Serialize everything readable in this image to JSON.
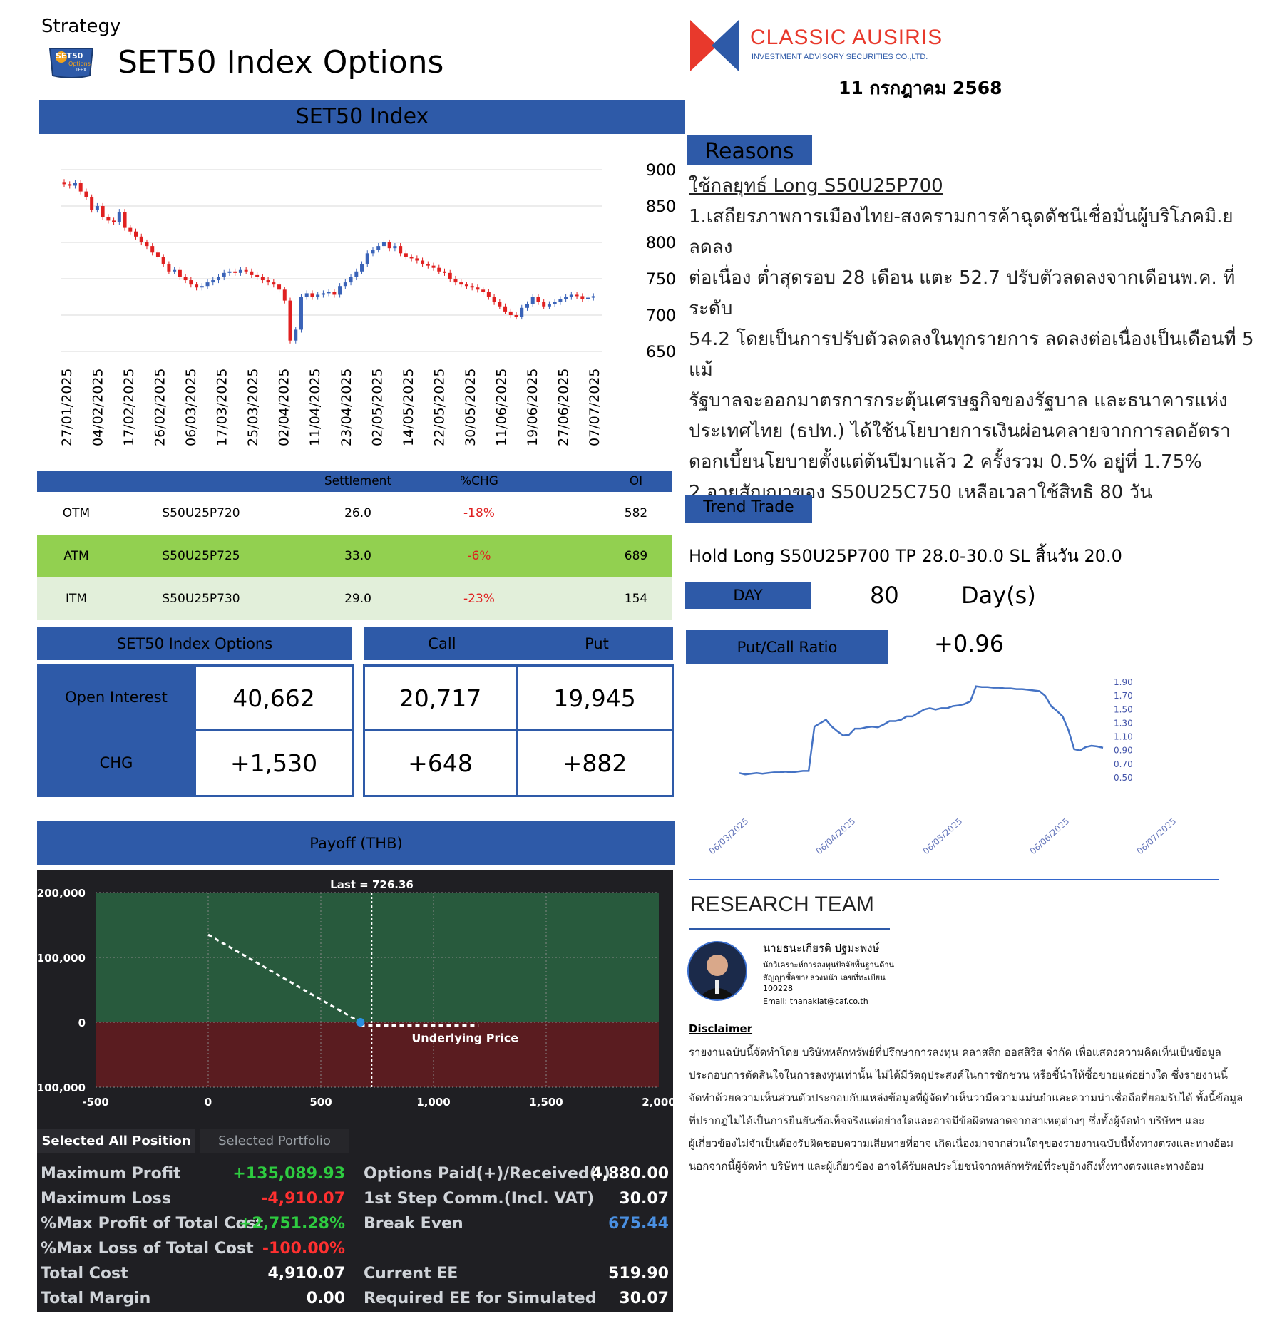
{
  "header": {
    "strategy_label": "Strategy",
    "logo_text_1": "SET50",
    "logo_text_2": "Options",
    "logo_text_3": "TFEX",
    "title": "SET50 Index Options",
    "company_name": "CLASSIC AUSIRIS",
    "company_sub": "INVESTMENT ADVISORY SECURITIES CO.,LTD.",
    "date": "11 กรกฎาคม 2568",
    "colors": {
      "brand_red": "#e8392c",
      "brand_blue": "#2e5aa8"
    }
  },
  "set50_panel": {
    "title": "SET50 Index",
    "chart_data": {
      "type": "candlestick",
      "ylim": [
        650,
        900
      ],
      "yticks": [
        "900",
        "850",
        "800",
        "750",
        "700",
        "650"
      ],
      "x_ticks": [
        "27/01/2025",
        "04/02/2025",
        "17/02/2025",
        "26/02/2025",
        "06/03/2025",
        "17/03/2025",
        "25/03/2025",
        "02/04/2025",
        "11/04/2025",
        "23/04/2025",
        "02/05/2025",
        "14/05/2025",
        "22/05/2025",
        "30/05/2025",
        "11/06/2025",
        "19/06/2025",
        "27/06/2025",
        "07/07/2025"
      ],
      "close": [
        880,
        878,
        882,
        870,
        862,
        845,
        850,
        835,
        830,
        828,
        842,
        820,
        815,
        808,
        800,
        795,
        786,
        780,
        770,
        760,
        762,
        752,
        748,
        742,
        738,
        740,
        745,
        748,
        752,
        758,
        760,
        758,
        762,
        760,
        755,
        752,
        748,
        745,
        742,
        735,
        720,
        665,
        680,
        725,
        730,
        725,
        728,
        730,
        732,
        728,
        740,
        745,
        752,
        760,
        770,
        785,
        790,
        795,
        800,
        792,
        795,
        785,
        780,
        778,
        775,
        770,
        768,
        765,
        760,
        758,
        750,
        745,
        742,
        740,
        738,
        735,
        732,
        725,
        718,
        712,
        705,
        700,
        698,
        710,
        715,
        725,
        718,
        712,
        715,
        718,
        722,
        725,
        728,
        726,
        722,
        724,
        726
      ]
    }
  },
  "reasons": {
    "title": "Reasons",
    "strategy": "ใช้กลยุทธ์ Long S50U25P700",
    "lines": [
      "1.เสถียรภาพการเมืองไทย-สงครามการค้าฉุดดัชนีเชื่อมั่นผู้บริโภคมิ.ย ลดลง",
      "ต่อเนื่อง ต่ำสุดรอบ 28 เดือน แตะ 52.7 ปรับตัวลดลงจากเดือนพ.ค. ที่ระดับ",
      "54.2 โดยเป็นการปรับตัวลดลงในทุกรายการ ลดลงต่อเนื่องเป็นเดือนที่ 5 แม้",
      "รัฐบาลจะออกมาตรการกระตุ้นเศรษฐกิจของรัฐบาล และธนาคารแห่ง",
      "ประเทศไทย (ธปท.) ได้ใช้นโยบายการเงินผ่อนคลายจากการลดอัตรา",
      "ดอกเบี้ยนโยบายตั้งแต่ต้นปีมาแล้ว 2 ครั้งรวม 0.5% อยู่ที่ 1.75%",
      "2.อายุสัญญาของ S50U25C750 เหลือเวลาใช้สิทธิ 80 วัน"
    ]
  },
  "options_table": {
    "headers": [
      "",
      "",
      "Settlement",
      "%CHG",
      "OI"
    ],
    "rows": [
      {
        "moneyness": "OTM",
        "series": "S50U25P720",
        "settlement": "26.0",
        "chg": "-18%",
        "oi": "582"
      },
      {
        "moneyness": "ATM",
        "series": "S50U25P725",
        "settlement": "33.0",
        "chg": "-6%",
        "oi": "689"
      },
      {
        "moneyness": "ITM",
        "series": "S50U25P730",
        "settlement": "29.0",
        "chg": "-23%",
        "oi": "154"
      }
    ]
  },
  "trend": {
    "title": "Trend Trade",
    "text": "Hold Long S50U25P700  TP 28.0-30.0 SL สิ้นวัน 20.0",
    "day_label": "DAY",
    "day_value": "80",
    "day_unit": "Day(s)",
    "pcr_label": "Put/Call Ratio",
    "pcr_value": "+0.96"
  },
  "oi_summary": {
    "title": "SET50 Index Options",
    "call_label": "Call",
    "put_label": "Put",
    "oi_label": "Open Interest",
    "chg_label": "CHG",
    "oi_total": "40,662",
    "oi_call": "20,717",
    "oi_put": "19,945",
    "chg_total": "+1,530",
    "chg_call": "+648",
    "chg_put": "+882"
  },
  "pcr_chart": {
    "chart_data": {
      "type": "line",
      "ylim": [
        0.5,
        1.9
      ],
      "yticks": [
        "1.90",
        "1.70",
        "1.50",
        "1.30",
        "1.10",
        "0.90",
        "0.70",
        "0.50"
      ],
      "x_ticks": [
        "06/03/2025",
        "06/04/2025",
        "06/05/2025",
        "06/06/2025",
        "06/07/2025"
      ],
      "values": [
        0.57,
        0.55,
        0.56,
        0.57,
        0.56,
        0.57,
        0.58,
        0.58,
        0.59,
        0.58,
        0.59,
        0.6,
        0.6,
        1.25,
        1.3,
        1.35,
        1.25,
        1.18,
        1.12,
        1.13,
        1.22,
        1.22,
        1.24,
        1.25,
        1.24,
        1.28,
        1.33,
        1.33,
        1.35,
        1.4,
        1.4,
        1.45,
        1.5,
        1.52,
        1.5,
        1.52,
        1.52,
        1.55,
        1.56,
        1.58,
        1.62,
        1.84,
        1.83,
        1.83,
        1.82,
        1.82,
        1.81,
        1.81,
        1.8,
        1.8,
        1.79,
        1.78,
        1.77,
        1.7,
        1.55,
        1.48,
        1.4,
        1.2,
        0.92,
        0.9,
        0.95,
        0.97,
        0.96,
        0.94
      ],
      "line_color": "#4472c4"
    }
  },
  "research": {
    "title": "RESEARCH TEAM",
    "name": "นายธนะเกียรติ ปฐมะพงษ์",
    "role1": "นักวิเคราะห์การลงทุนปัจจัยพื้นฐานด้าน",
    "role2": "สัญญาซื้อขายล่วงหน้า เลขที่ทะเบียน",
    "reg_no": "100228",
    "email": "Email: thanakiat@caf.co.th",
    "disclaimer_title": "Disclaimer",
    "disclaimer_lines": [
      "รายงานฉบับนี้จัดทำโดย บริษัทหลักทรัพย์ที่ปรึกษาการลงทุน คลาสสิก ออสสิริส จำกัด เพื่อแสดงความคิดเห็นเป็นข้อมูล",
      "ประกอบการตัดสินใจในการลงทุนเท่านั้น ไม่ได้มีวัตถุประสงค์ในการชักชวน หรือชี้นำให้ซื้อขายแต่อย่างใด ซึ่งรายงานนี้",
      "จัดทำด้วยความเห็นส่วนตัวประกอบกับแหล่งข้อมูลที่ผู้จัดทำเห็นว่ามีความแม่นยำและความน่าเชื่อถือที่ยอมรับได้ ทั้งนี้ข้อมูล",
      "ที่ปรากฎไม่ได้เป็นการยืนยันข้อเท็จจริงแต่อย่างใดและอาจมีข้อผิดพลาดจากสาเหตุต่างๆ ซึ่งทั้งผู้จัดทำ บริษัทฯ และ",
      "ผู้เกี่ยวข้องไม่จำเป็นต้องรับผิดชอบความเสียหายที่อาจ เกิดเนื่องมาจากส่วนใดๆของรายงานฉบับนี้ทั้งทางตรงและทางอ้อม",
      "นอกจากนี้ผู้จัดทำ บริษัทฯ และผู้เกี่ยวข้อง อาจได้รับผลประโยชน์จากหลักทรัพย์ที่ระบุอ้างถึงทั้งทางตรงและทางอ้อม"
    ]
  },
  "payoff": {
    "title": "Payoff (THB)",
    "last_label": "Last = 726.36",
    "underlying_label": "Underlying Price",
    "chart_data": {
      "type": "line",
      "xlim": [
        -500,
        2000
      ],
      "ylim": [
        -100000,
        200000
      ],
      "yticks": [
        "200,000",
        "100,000",
        "0",
        "-100,000"
      ],
      "xticks": [
        "-500",
        "0",
        "500",
        "1,000",
        "1,500",
        "2,000"
      ],
      "last_price": 726.36,
      "points": [
        [
          0,
          135089.93
        ],
        [
          675.44,
          0
        ],
        [
          1200,
          -4910.07
        ]
      ]
    },
    "tabs": [
      "Selected All Position",
      "Selected Portfolio"
    ],
    "stats_left": [
      {
        "label": "Maximum Profit",
        "value": "+135,089.93",
        "color": "green"
      },
      {
        "label": "Maximum Loss",
        "value": "-4,910.07",
        "color": "red"
      },
      {
        "label": "%Max Profit of Total Cost",
        "value": "+2,751.28%",
        "color": "green"
      },
      {
        "label": "%Max Loss of Total Cost",
        "value": "-100.00%",
        "color": "red"
      },
      {
        "label": "Total Cost",
        "value": "4,910.07",
        "color": "white"
      },
      {
        "label": "Total Margin",
        "value": "0.00",
        "color": "white"
      }
    ],
    "stats_right": [
      {
        "label": "Options Paid(+)/Received(-)",
        "value": "4,880.00",
        "color": "white"
      },
      {
        "label": "1st Step Comm.(Incl. VAT)",
        "value": "30.07",
        "color": "white"
      },
      {
        "label": "Break Even",
        "value": "675.44",
        "color": "blue"
      },
      {
        "label": "Current EE",
        "value": "519.90",
        "color": "white"
      },
      {
        "label": "Required EE for Simulated",
        "value": "30.07",
        "color": "white"
      }
    ]
  }
}
